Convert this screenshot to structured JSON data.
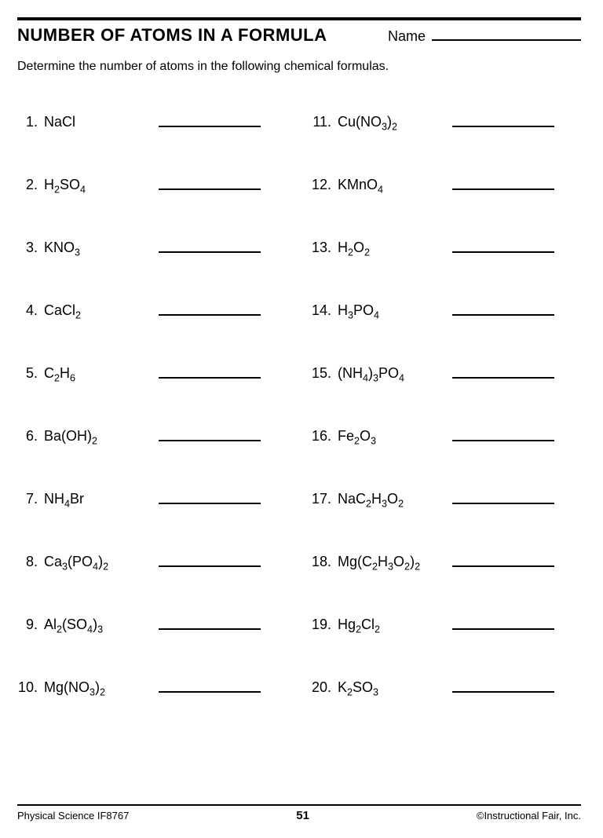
{
  "title": "NUMBER OF ATOMS IN A FORMULA",
  "name_label": "Name",
  "instructions": "Determine the number of atoms in the following chemical formulas.",
  "left_items": [
    {
      "n": "1.",
      "formula": "NaCl"
    },
    {
      "n": "2.",
      "formula": "H<sub>2</sub>SO<sub>4</sub>"
    },
    {
      "n": "3.",
      "formula": "KNO<sub>3</sub>"
    },
    {
      "n": "4.",
      "formula": "CaCl<sub>2</sub>"
    },
    {
      "n": "5.",
      "formula": "C<sub>2</sub>H<sub>6</sub>"
    },
    {
      "n": "6.",
      "formula": "Ba(OH)<sub>2</sub>"
    },
    {
      "n": "7.",
      "formula": "NH<sub>4</sub>Br"
    },
    {
      "n": "8.",
      "formula": "Ca<sub>3</sub>(PO<sub>4</sub>)<sub>2</sub>"
    },
    {
      "n": "9.",
      "formula": "Al<sub>2</sub>(SO<sub>4</sub>)<sub>3</sub>"
    },
    {
      "n": "10.",
      "formula": "Mg(NO<sub>3</sub>)<sub>2</sub>"
    }
  ],
  "right_items": [
    {
      "n": "11.",
      "formula": "Cu(NO<sub>3</sub>)<sub>2</sub>"
    },
    {
      "n": "12.",
      "formula": "KMnO<sub>4</sub>"
    },
    {
      "n": "13.",
      "formula": "H<sub>2</sub>O<sub>2</sub>"
    },
    {
      "n": "14.",
      "formula": "H<sub>3</sub>PO<sub>4</sub>"
    },
    {
      "n": "15.",
      "formula": "(NH<sub>4</sub>)<sub>3</sub>PO<sub>4</sub>"
    },
    {
      "n": "16.",
      "formula": "Fe<sub>2</sub>O<sub>3</sub>"
    },
    {
      "n": "17.",
      "formula": "NaC<sub>2</sub>H<sub>3</sub>O<sub>2</sub>"
    },
    {
      "n": "18.",
      "formula": "Mg(C<sub>2</sub>H<sub>3</sub>O<sub>2</sub>)<sub>2</sub>"
    },
    {
      "n": "19.",
      "formula": "Hg<sub>2</sub>Cl<sub>2</sub>"
    },
    {
      "n": "20.",
      "formula": "K<sub>2</sub>SO<sub>3</sub>"
    }
  ],
  "footer_left": "Physical Science IF8767",
  "footer_page": "51",
  "footer_right": "©Instructional Fair, Inc."
}
